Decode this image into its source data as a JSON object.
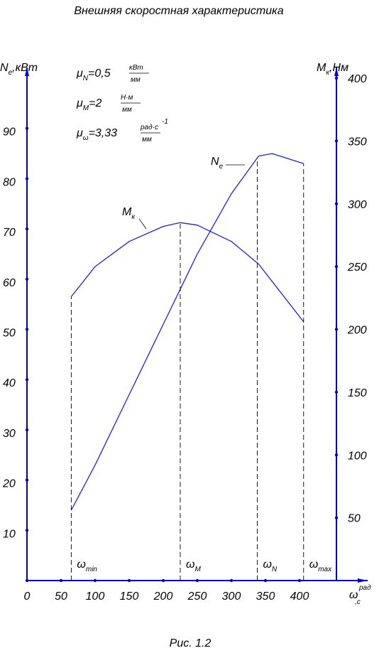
{
  "chart_data": {
    "type": "line",
    "title": "Внешняя скоростная характеристика",
    "caption": "Рис. 1.2",
    "y_label": {
      "symbol": "N",
      "sub": "e",
      "unit": ",кВт"
    },
    "y2_label": {
      "symbol": "M",
      "sub": "к",
      "unit": ",Нм"
    },
    "x_label": {
      "symbol": "ω",
      "unit_num": "рад",
      "unit_den": ",с"
    },
    "scales": [
      {
        "symbol": "μ",
        "sub": "N",
        "value": "=0,5",
        "num": "кВт",
        "den": "мм"
      },
      {
        "symbol": "μ",
        "sub": "M",
        "value": "=2",
        "num": "Н·м",
        "den": "мм"
      },
      {
        "symbol": "μ",
        "sub": "ω",
        "value": "=3,33",
        "num": "рад·с",
        "sup": "-1",
        "den": "мм"
      }
    ],
    "x": [
      65,
      100,
      150,
      200,
      225,
      250,
      300,
      340,
      360,
      406
    ],
    "series": [
      {
        "name": "N",
        "name_sub": "e",
        "color": "#2020e0",
        "values": [
          14,
          23,
          37,
          51,
          58,
          65,
          77,
          84.5,
          85,
          83
        ]
      },
      {
        "name": "M",
        "name_sub": "к",
        "color": "#2020e0",
        "axis": "y2",
        "values": [
          226,
          250,
          270,
          282,
          285,
          283,
          270,
          252,
          238,
          206
        ]
      }
    ],
    "markers": [
      {
        "x": 65,
        "symbol": "ω",
        "sub": "min"
      },
      {
        "x": 225,
        "symbol": "ω",
        "sub": "M"
      },
      {
        "x": 338,
        "symbol": "ω",
        "sub": "N"
      },
      {
        "x": 406,
        "symbol": "ω",
        "sub": "max"
      }
    ],
    "xlim": [
      0,
      500
    ],
    "xticks": [
      0,
      50,
      100,
      150,
      200,
      250,
      300,
      350,
      400
    ],
    "ylim": [
      0,
      100
    ],
    "yticks": [
      10,
      20,
      30,
      40,
      50,
      60,
      70,
      80,
      90
    ],
    "y2lim": [
      0,
      400
    ],
    "y2ticks": [
      50,
      100,
      150,
      200,
      250,
      300,
      350,
      400
    ],
    "axis_color": "#0000cc",
    "grid": false
  }
}
